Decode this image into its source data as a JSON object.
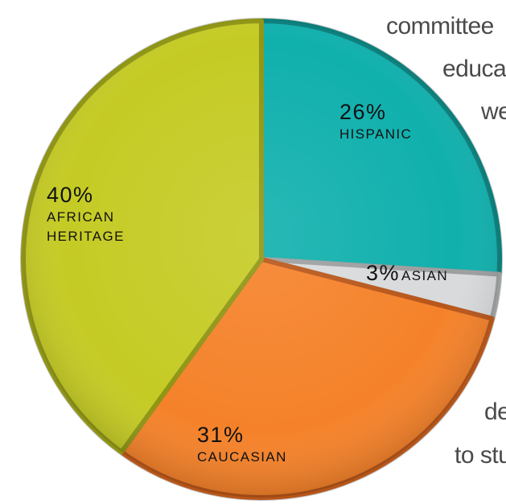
{
  "background_text": [
    "committee",
    "educa",
    "we",
    "de",
    "to stu"
  ],
  "chart_data": {
    "type": "pie",
    "title": "",
    "slices": [
      {
        "label_lines": [
          "HISPANIC"
        ],
        "value": 26,
        "value_label": "26%",
        "color": "#10b0ad",
        "edge": "#0a7e7b"
      },
      {
        "label_lines": [
          "ASIAN"
        ],
        "value": 3,
        "value_label": "3%",
        "color": "#d8dadb",
        "edge": "#9c9fa0"
      },
      {
        "label_lines": [
          "CAUCASIAN"
        ],
        "value": 31,
        "value_label": "31%",
        "color": "#f5822a",
        "edge": "#b8561a"
      },
      {
        "label_lines": [
          "AFRICAN",
          "HERITAGE"
        ],
        "value": 40,
        "value_label": "40%",
        "color": "#c5cb24",
        "edge": "#8f9514"
      }
    ],
    "legend": "none",
    "grid": false
  }
}
